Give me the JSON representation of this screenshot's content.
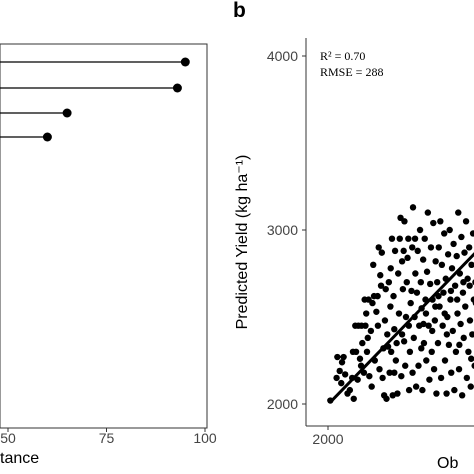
{
  "chart_data": [
    {
      "type": "lollipop",
      "orientation": "horizontal",
      "xlabel": "tance",
      "xlim": [
        -6,
        100
      ],
      "xticks": [
        "50",
        "75",
        "100"
      ],
      "values": [
        95,
        93,
        65,
        60
      ],
      "colors": {
        "point": "#000000",
        "frame": "#333333"
      }
    },
    {
      "type": "scatter",
      "panel_label": "b",
      "xlabel": "Ob",
      "ylabel": "Predicted Yield (kg ha⁻¹)",
      "xlim": [
        1950,
        3000
      ],
      "ylim": [
        1950,
        4050
      ],
      "xticks": [
        "2000"
      ],
      "yticks": [
        "2000",
        "3000",
        "4000"
      ],
      "annotations": {
        "r2": "R² = 0.70",
        "rmse": "RMSE = 288"
      },
      "fit_line": {
        "x": [
          2025,
          3000
        ],
        "y": [
          2020,
          2920
        ]
      },
      "points": [
        [
          2015,
          2020
        ],
        [
          2055,
          2150
        ],
        [
          2060,
          2270
        ],
        [
          2075,
          2190
        ],
        [
          2085,
          2120
        ],
        [
          2090,
          2240
        ],
        [
          2100,
          2270
        ],
        [
          2110,
          2170
        ],
        [
          2125,
          2060
        ],
        [
          2140,
          2080
        ],
        [
          2155,
          2150
        ],
        [
          2165,
          2030
        ],
        [
          2175,
          2450
        ],
        [
          2180,
          2300
        ],
        [
          2190,
          2140
        ],
        [
          2195,
          2450
        ],
        [
          2205,
          2260
        ],
        [
          2215,
          2450
        ],
        [
          2220,
          2350
        ],
        [
          2230,
          2180
        ],
        [
          2235,
          2600
        ],
        [
          2240,
          2450
        ],
        [
          2250,
          2300
        ],
        [
          2255,
          2380
        ],
        [
          2260,
          2600
        ],
        [
          2265,
          2160
        ],
        [
          2275,
          2420
        ],
        [
          2285,
          2580
        ],
        [
          2290,
          2800
        ],
        [
          2295,
          2620
        ],
        [
          2300,
          2250
        ],
        [
          2310,
          2530
        ],
        [
          2320,
          2450
        ],
        [
          2325,
          2900
        ],
        [
          2330,
          2200
        ],
        [
          2340,
          2680
        ],
        [
          2345,
          2870
        ],
        [
          2350,
          2150
        ],
        [
          2355,
          2320
        ],
        [
          2360,
          2050
        ],
        [
          2365,
          2480
        ],
        [
          2370,
          2660
        ],
        [
          2375,
          2030
        ],
        [
          2380,
          2400
        ],
        [
          2390,
          2700
        ],
        [
          2395,
          2180
        ],
        [
          2400,
          2560
        ],
        [
          2405,
          2300
        ],
        [
          2410,
          2950
        ],
        [
          2415,
          2050
        ],
        [
          2420,
          2620
        ],
        [
          2425,
          2430
        ],
        [
          2430,
          2880
        ],
        [
          2435,
          2250
        ],
        [
          2440,
          2350
        ],
        [
          2445,
          2060
        ],
        [
          2450,
          2750
        ],
        [
          2455,
          2520
        ],
        [
          2460,
          2950
        ],
        [
          2465,
          3070
        ],
        [
          2470,
          2160
        ],
        [
          2475,
          2400
        ],
        [
          2480,
          2660
        ],
        [
          2485,
          2880
        ],
        [
          2490,
          3050
        ],
        [
          2495,
          2220
        ],
        [
          2500,
          2500
        ],
        [
          2505,
          2700
        ],
        [
          2510,
          2840
        ],
        [
          2515,
          2950
        ],
        [
          2520,
          2080
        ],
        [
          2525,
          2300
        ],
        [
          2530,
          2580
        ],
        [
          2535,
          2650
        ],
        [
          2540,
          2900
        ],
        [
          2545,
          3130
        ],
        [
          2550,
          2380
        ],
        [
          2555,
          2500
        ],
        [
          2560,
          2750
        ],
        [
          2565,
          2100
        ],
        [
          2570,
          2640
        ],
        [
          2575,
          2880
        ],
        [
          2580,
          2220
        ],
        [
          2585,
          2450
        ],
        [
          2590,
          3000
        ],
        [
          2595,
          2700
        ],
        [
          2600,
          2550
        ],
        [
          2605,
          2080
        ],
        [
          2610,
          2830
        ],
        [
          2615,
          2350
        ],
        [
          2620,
          2950
        ],
        [
          2625,
          2600
        ],
        [
          2630,
          2250
        ],
        [
          2635,
          2760
        ],
        [
          2640,
          3100
        ],
        [
          2645,
          2450
        ],
        [
          2650,
          2140
        ],
        [
          2655,
          2690
        ],
        [
          2660,
          2900
        ],
        [
          2665,
          2300
        ],
        [
          2670,
          2600
        ],
        [
          2675,
          3040
        ],
        [
          2680,
          2200
        ],
        [
          2685,
          2480
        ],
        [
          2690,
          2820
        ],
        [
          2695,
          2060
        ],
        [
          2700,
          2700
        ],
        [
          2705,
          2350
        ],
        [
          2710,
          2900
        ],
        [
          2715,
          2560
        ],
        [
          2720,
          3050
        ],
        [
          2725,
          2150
        ],
        [
          2730,
          2800
        ],
        [
          2735,
          2450
        ],
        [
          2740,
          2640
        ],
        [
          2745,
          2980
        ],
        [
          2750,
          2250
        ],
        [
          2755,
          2720
        ],
        [
          2760,
          2060
        ],
        [
          2765,
          2500
        ],
        [
          2770,
          2860
        ],
        [
          2775,
          2340
        ],
        [
          2780,
          3000
        ],
        [
          2785,
          2600
        ],
        [
          2790,
          2180
        ],
        [
          2795,
          2780
        ],
        [
          2800,
          2420
        ],
        [
          2805,
          2920
        ],
        [
          2810,
          2080
        ],
        [
          2815,
          2680
        ],
        [
          2820,
          2300
        ],
        [
          2825,
          2850
        ],
        [
          2830,
          2520
        ],
        [
          2835,
          3100
        ],
        [
          2840,
          2200
        ],
        [
          2845,
          2750
        ],
        [
          2850,
          2460
        ],
        [
          2855,
          2960
        ],
        [
          2860,
          2050
        ],
        [
          2865,
          2640
        ],
        [
          2870,
          2380
        ],
        [
          2875,
          2870
        ],
        [
          2880,
          2560
        ],
        [
          2885,
          3050
        ],
        [
          2890,
          2150
        ],
        [
          2895,
          2720
        ],
        [
          2900,
          2300
        ],
        [
          2905,
          2900
        ],
        [
          2910,
          2480
        ],
        [
          2915,
          2100
        ],
        [
          2920,
          2800
        ],
        [
          2925,
          2400
        ],
        [
          2930,
          2980
        ],
        [
          2935,
          2600
        ],
        [
          2940,
          2220
        ],
        [
          2945,
          2700
        ],
        [
          2950,
          2050
        ],
        [
          2955,
          2850
        ],
        [
          2960,
          2500
        ],
        [
          2965,
          2340
        ],
        [
          2970,
          2900
        ],
        [
          2975,
          2640
        ],
        [
          2980,
          2180
        ],
        [
          2985,
          2760
        ],
        [
          2990,
          2450
        ],
        [
          2995,
          2950
        ],
        [
          2160,
          2300
        ],
        [
          2245,
          2520
        ],
        [
          2280,
          2100
        ],
        [
          2335,
          2740
        ],
        [
          2385,
          2330
        ],
        [
          2425,
          2180
        ],
        [
          2475,
          2820
        ],
        [
          2518,
          2450
        ],
        [
          2558,
          2950
        ],
        [
          2598,
          2320
        ],
        [
          2628,
          2520
        ],
        [
          2668,
          2420
        ],
        [
          2708,
          2620
        ],
        [
          2748,
          2520
        ],
        [
          2788,
          2650
        ],
        [
          2828,
          2600
        ],
        [
          2868,
          2700
        ],
        [
          2908,
          2680
        ],
        [
          2948,
          2580
        ],
        [
          2988,
          2620
        ],
        [
          2212,
          2220
        ],
        [
          2318,
          2620
        ],
        [
          2402,
          2780
        ],
        [
          2488,
          2360
        ],
        [
          2542,
          2180
        ],
        [
          2612,
          2460
        ],
        [
          2688,
          2560
        ],
        [
          2762,
          2400
        ],
        [
          2842,
          2340
        ],
        [
          2918,
          2260
        ],
        [
          2962,
          2760
        ]
      ]
    }
  ]
}
